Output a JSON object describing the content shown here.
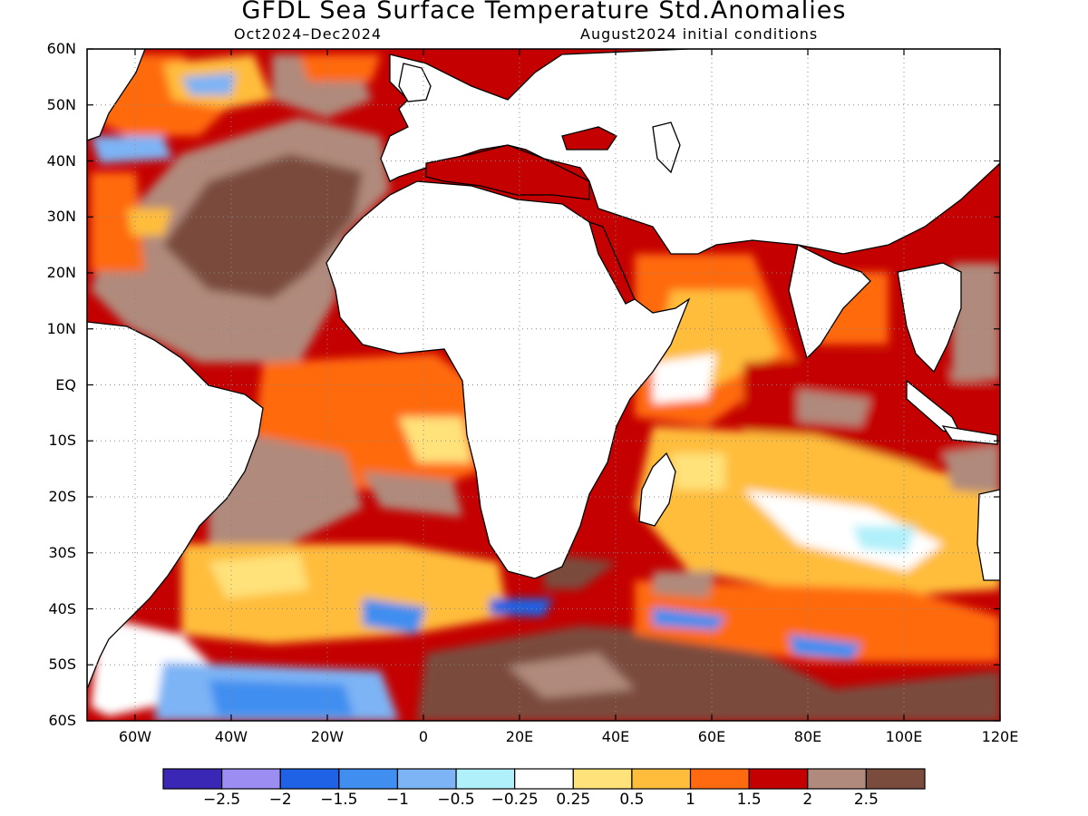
{
  "title": "GFDL Sea Surface Temperature Std.Anomalies",
  "subtitle_left": "Oct2024–Dec2024",
  "subtitle_right": "August2024 initial conditions",
  "lat_labels": [
    "60N",
    "50N",
    "40N",
    "30N",
    "20N",
    "10N",
    "EQ",
    "10S",
    "20S",
    "30S",
    "40S",
    "50S",
    "60S"
  ],
  "lon_labels": [
    "60W",
    "40W",
    "20W",
    "0",
    "20E",
    "40E",
    "60E",
    "80E",
    "100E",
    "120E"
  ],
  "colorbar": {
    "colors": [
      "#3a27b5",
      "#9c8df2",
      "#1f62e5",
      "#3f8ef0",
      "#7db4f5",
      "#b0f0fa",
      "#ffffff",
      "#ffe27a",
      "#ffbd3b",
      "#ff6a10",
      "#c40000",
      "#b08a7c",
      "#7a4c3e"
    ],
    "labels": [
      "−2.5",
      "−2",
      "−1.5",
      "−1",
      "−0.5",
      "−0.25",
      "0.25",
      "0.5",
      "1",
      "1.5",
      "2",
      "2.5"
    ]
  },
  "map": {
    "lon_range": [
      -70,
      120
    ],
    "lat_range": [
      -60,
      60
    ],
    "background_color": "#c40000"
  }
}
